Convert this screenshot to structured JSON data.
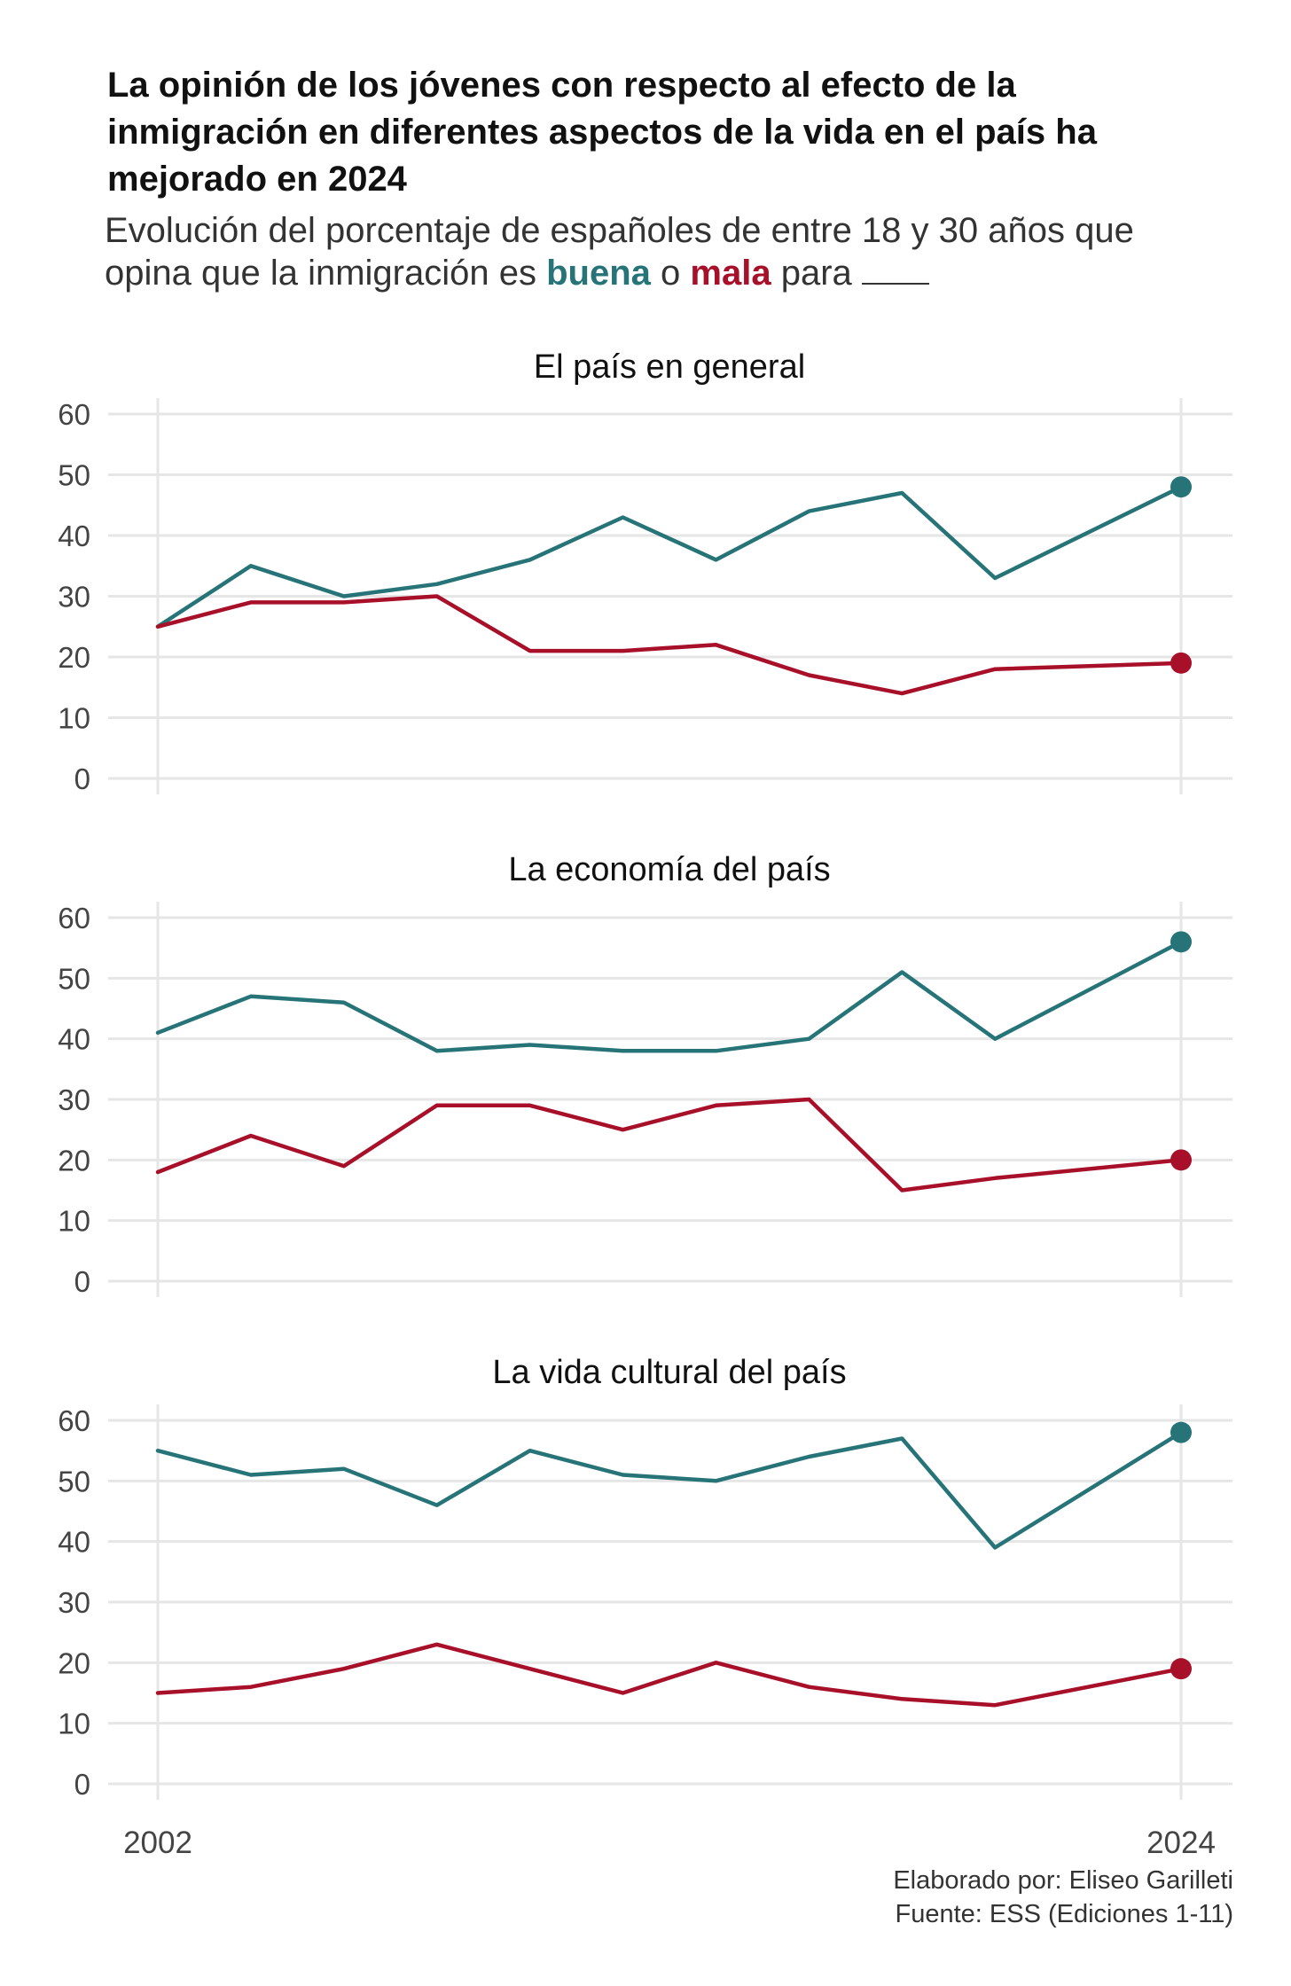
{
  "title": "La opinión de los jóvenes con respecto al efecto de la inmigración en diferentes aspectos de la vida en el país ha mejorado en 2024",
  "subtitle": {
    "before": "Evolución del porcentaje de españoles de entre 18 y 30 años que opina que la inmigración es",
    "buena": "buena",
    "connector": "o",
    "mala": "mala",
    "after": "para"
  },
  "colors": {
    "buena": "#277478",
    "mala": "#A8102A",
    "grid": "#e6e6e6",
    "tick_text": "#444444"
  },
  "chart_data": [
    {
      "type": "line",
      "title": "El país en general",
      "x": [
        2002,
        2004,
        2006,
        2008,
        2010,
        2012,
        2014,
        2016,
        2018,
        2020,
        2024
      ],
      "ylim": [
        0,
        60
      ],
      "yticks": [
        0,
        10,
        20,
        30,
        40,
        50,
        60
      ],
      "xticks": [
        2002,
        2024
      ],
      "series": [
        {
          "key": "buena",
          "values": [
            25,
            35,
            30,
            32,
            36,
            43,
            36,
            44,
            47,
            33,
            48
          ]
        },
        {
          "key": "mala",
          "values": [
            25,
            29,
            29,
            30,
            21,
            21,
            22,
            17,
            14,
            18,
            19
          ]
        }
      ]
    },
    {
      "type": "line",
      "title": "La economía del país",
      "x": [
        2002,
        2004,
        2006,
        2008,
        2010,
        2012,
        2014,
        2016,
        2018,
        2020,
        2024
      ],
      "ylim": [
        0,
        60
      ],
      "yticks": [
        0,
        10,
        20,
        30,
        40,
        50,
        60
      ],
      "xticks": [
        2002,
        2024
      ],
      "series": [
        {
          "key": "buena",
          "values": [
            41,
            47,
            46,
            38,
            39,
            38,
            38,
            40,
            51,
            40,
            56
          ]
        },
        {
          "key": "mala",
          "values": [
            18,
            24,
            19,
            29,
            29,
            25,
            29,
            30,
            15,
            17,
            20
          ]
        }
      ]
    },
    {
      "type": "line",
      "title": "La vida cultural del país",
      "x": [
        2002,
        2004,
        2006,
        2008,
        2010,
        2012,
        2014,
        2016,
        2018,
        2020,
        2024
      ],
      "ylim": [
        0,
        60
      ],
      "yticks": [
        0,
        10,
        20,
        30,
        40,
        50,
        60
      ],
      "xticks": [
        2002,
        2024
      ],
      "series": [
        {
          "key": "buena",
          "values": [
            55,
            51,
            52,
            46,
            55,
            51,
            50,
            54,
            57,
            39,
            58
          ]
        },
        {
          "key": "mala",
          "values": [
            15,
            16,
            19,
            23,
            19,
            15,
            20,
            16,
            14,
            13,
            19
          ]
        }
      ]
    }
  ],
  "credits": {
    "author": "Elaborado por: Eliseo Garilleti",
    "source": "Fuente: ESS (Ediciones 1-11)"
  }
}
